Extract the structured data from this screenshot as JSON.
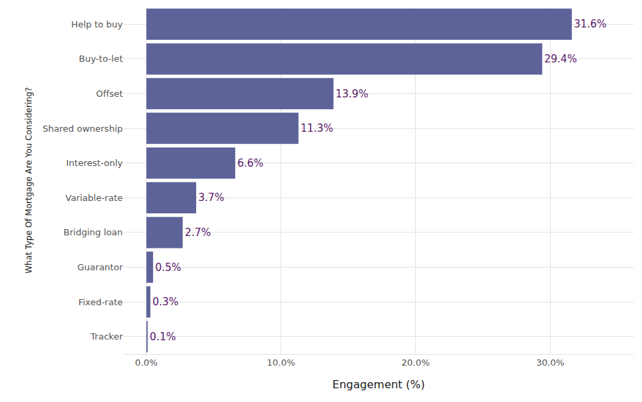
{
  "chart_data": {
    "type": "bar",
    "orientation": "horizontal",
    "x_label": "Engagement (%)",
    "y_label": "What Type Of Mortgage Are You Considering?",
    "categories": [
      "Help to buy",
      "Buy-to-let",
      "Offset",
      "Shared ownership",
      "Interest-only",
      "Variable-rate",
      "Bridging loan",
      "Guarantor",
      "Fixed-rate",
      "Tracker"
    ],
    "values": [
      31.6,
      29.4,
      13.9,
      11.3,
      6.6,
      3.7,
      2.7,
      0.5,
      0.3,
      0.1
    ],
    "value_labels": [
      "31.6%",
      "29.4%",
      "13.9%",
      "11.3%",
      "6.6%",
      "3.7%",
      "2.7%",
      "0.5%",
      "0.3%",
      "0.1%"
    ],
    "data_labels": true,
    "color": "#5d6399",
    "xlim": [
      -1.7,
      36.2
    ],
    "xticks": [
      {
        "value": 0,
        "label": "0.0%"
      },
      {
        "value": 10,
        "label": "10.0%"
      },
      {
        "value": 20,
        "label": "20.0%"
      },
      {
        "value": 30,
        "label": "30.0%"
      }
    ],
    "grid": true
  }
}
